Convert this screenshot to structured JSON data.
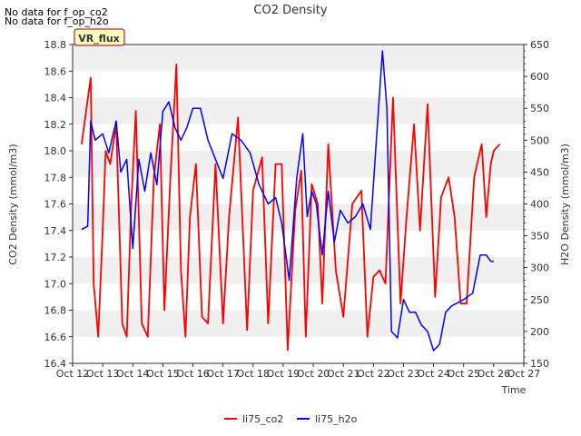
{
  "no_data_notes": [
    "No data for f_op_co2",
    "No data for f_op_h2o"
  ],
  "site_badge": "VR_flux",
  "colors": {
    "co2": "#ff0000",
    "h2o": "#0000ff",
    "band": "#f0f0f0",
    "badge_fill": "#ffffc0",
    "badge_border": "#8b0000",
    "badge_text": "#8b0000"
  },
  "chart_data": {
    "type": "line",
    "title": "CO2 Density",
    "xlabel": "Time",
    "ylabel_left": "CO2 Density (mmol/m3)",
    "ylabel_right": "H2O Density (mmol/m3)",
    "x_ticks": [
      "Oct 12",
      "Oct 13",
      "Oct 14",
      "Oct 15",
      "Oct 16",
      "Oct 17",
      "Oct 18",
      "Oct 19",
      "Oct 20",
      "Oct 21",
      "Oct 22",
      "Oct 23",
      "Oct 24",
      "Oct 25",
      "Oct 26",
      "Oct 27"
    ],
    "xlim": [
      12,
      27
    ],
    "ylim_left": [
      16.4,
      18.8
    ],
    "y_ticks_left": [
      "16.4",
      "16.6",
      "16.8",
      "17.0",
      "17.2",
      "17.4",
      "17.6",
      "17.8",
      "18.0",
      "18.2",
      "18.4",
      "18.6",
      "18.8"
    ],
    "ylim_right": [
      150,
      650
    ],
    "y_ticks_right": [
      "150",
      "200",
      "250",
      "300",
      "350",
      "400",
      "450",
      "500",
      "550",
      "600",
      "650"
    ],
    "legend_position": "bottom-center",
    "series": [
      {
        "name": "li75_co2",
        "axis": "left",
        "x": [
          12.3,
          12.45,
          12.6,
          12.7,
          12.85,
          13.0,
          13.1,
          13.25,
          13.45,
          13.65,
          13.8,
          13.95,
          14.1,
          14.3,
          14.5,
          14.7,
          14.9,
          15.05,
          15.25,
          15.45,
          15.6,
          15.75,
          15.9,
          16.1,
          16.3,
          16.5,
          16.75,
          17.0,
          17.2,
          17.5,
          17.8,
          18.0,
          18.3,
          18.5,
          18.75,
          18.95,
          19.15,
          19.4,
          19.6,
          19.75,
          19.95,
          20.15,
          20.3,
          20.5,
          20.75,
          21.0,
          21.3,
          21.6,
          21.8,
          22.0,
          22.2,
          22.4,
          22.65,
          22.9,
          23.1,
          23.35,
          23.55,
          23.8,
          24.05,
          24.25,
          24.5,
          24.7,
          24.9,
          25.1,
          25.35,
          25.6,
          25.75,
          25.9,
          26.0,
          26.2
        ],
        "values": [
          18.05,
          18.3,
          18.55,
          17.0,
          16.6,
          17.4,
          18.0,
          17.9,
          18.2,
          16.7,
          16.6,
          17.6,
          18.3,
          16.7,
          16.6,
          17.8,
          18.2,
          16.8,
          17.8,
          18.65,
          17.1,
          16.6,
          17.5,
          17.9,
          16.75,
          16.7,
          17.9,
          16.7,
          17.5,
          18.25,
          16.65,
          17.7,
          17.95,
          16.7,
          17.9,
          17.9,
          16.5,
          17.55,
          17.85,
          16.6,
          17.75,
          17.6,
          16.85,
          18.05,
          17.1,
          16.75,
          17.6,
          17.7,
          16.6,
          17.05,
          17.1,
          17.0,
          18.4,
          16.85,
          17.5,
          18.2,
          17.4,
          18.35,
          16.9,
          17.65,
          17.8,
          17.5,
          16.85,
          16.85,
          17.8,
          18.05,
          17.5,
          17.9,
          18.0,
          18.05
        ]
      },
      {
        "name": "li75_h2o",
        "axis": "right",
        "x": [
          12.3,
          12.5,
          12.6,
          12.75,
          13.0,
          13.2,
          13.45,
          13.6,
          13.8,
          14.0,
          14.2,
          14.4,
          14.6,
          14.8,
          15.0,
          15.2,
          15.4,
          15.6,
          15.8,
          16.0,
          16.25,
          16.5,
          16.75,
          17.0,
          17.3,
          17.6,
          17.9,
          18.2,
          18.5,
          18.75,
          18.95,
          19.2,
          19.45,
          19.65,
          19.8,
          19.95,
          20.1,
          20.3,
          20.5,
          20.7,
          20.9,
          21.15,
          21.4,
          21.65,
          21.9,
          22.1,
          22.3,
          22.45,
          22.6,
          22.8,
          23.0,
          23.2,
          23.4,
          23.6,
          23.8,
          24.0,
          24.2,
          24.4,
          24.6,
          24.8,
          25.0,
          25.3,
          25.55,
          25.75,
          25.9,
          26.0
        ],
        "values": [
          360,
          365,
          530,
          500,
          510,
          480,
          530,
          450,
          470,
          330,
          470,
          420,
          480,
          430,
          545,
          560,
          520,
          500,
          520,
          550,
          550,
          500,
          470,
          440,
          510,
          500,
          480,
          430,
          400,
          410,
          370,
          280,
          440,
          510,
          380,
          420,
          400,
          320,
          420,
          340,
          390,
          370,
          380,
          400,
          360,
          500,
          640,
          550,
          200,
          190,
          250,
          230,
          230,
          210,
          200,
          170,
          180,
          230,
          240,
          245,
          250,
          260,
          320,
          320,
          310,
          310
        ]
      }
    ]
  }
}
